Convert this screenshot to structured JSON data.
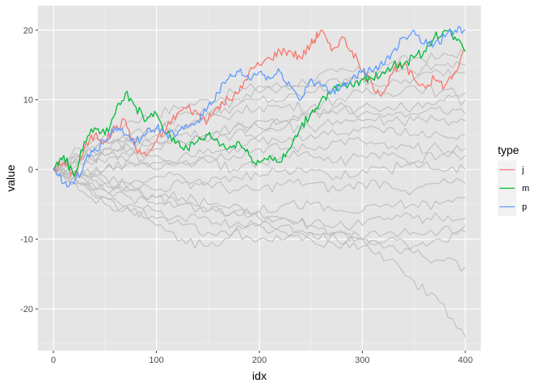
{
  "chart_data": {
    "type": "line",
    "xlabel": "idx",
    "ylabel": "value",
    "xlim": [
      -15,
      415
    ],
    "ylim": [
      -26,
      23.5
    ],
    "x_ticks": [
      0,
      100,
      200,
      300,
      400
    ],
    "x_tick_labels": [
      "0",
      "100",
      "200",
      "300",
      "400"
    ],
    "y_ticks": [
      -20,
      -10,
      0,
      10,
      20
    ],
    "y_tick_labels": [
      "-20",
      "-10",
      "0",
      "10",
      "20"
    ],
    "grid": true,
    "panel_background": "#e5e5e5",
    "background_series_color": "#bebebe",
    "background_series": [
      {
        "x": [
          0,
          25,
          50,
          75,
          100,
          125,
          150,
          175,
          200,
          225,
          250,
          275,
          300,
          325,
          350,
          375,
          400
        ],
        "values": [
          0,
          3,
          5,
          7,
          8,
          9,
          10,
          11,
          12,
          12,
          13,
          14,
          14,
          15,
          16,
          16,
          17
        ]
      },
      {
        "x": [
          0,
          25,
          50,
          75,
          100,
          125,
          150,
          175,
          200,
          225,
          250,
          275,
          300,
          325,
          350,
          375,
          400
        ],
        "values": [
          0,
          2,
          4,
          5,
          6,
          8,
          8,
          10,
          11,
          12,
          12,
          13,
          13,
          14,
          14,
          15,
          15
        ]
      },
      {
        "x": [
          0,
          25,
          50,
          75,
          100,
          125,
          150,
          175,
          200,
          225,
          250,
          275,
          300,
          325,
          350,
          375,
          400
        ],
        "values": [
          0,
          1,
          3,
          4,
          5,
          6,
          8,
          9,
          10,
          10,
          11,
          12,
          13,
          12,
          13,
          14,
          14
        ]
      },
      {
        "x": [
          0,
          25,
          50,
          75,
          100,
          125,
          150,
          175,
          200,
          225,
          250,
          275,
          300,
          325,
          350,
          375,
          400
        ],
        "values": [
          0,
          2,
          4,
          4,
          6,
          6,
          7,
          8,
          9,
          9,
          9,
          10,
          11,
          11,
          12,
          11,
          11
        ]
      },
      {
        "x": [
          0,
          25,
          50,
          75,
          100,
          125,
          150,
          175,
          200,
          225,
          250,
          275,
          300,
          325,
          350,
          375,
          400
        ],
        "values": [
          0,
          1,
          2,
          3,
          4,
          4,
          5,
          6,
          6,
          7,
          8,
          8,
          9,
          9,
          9,
          10,
          10
        ]
      },
      {
        "x": [
          0,
          25,
          50,
          75,
          100,
          125,
          150,
          175,
          200,
          225,
          250,
          275,
          300,
          325,
          350,
          375,
          400
        ],
        "values": [
          0,
          2,
          3,
          3,
          4,
          5,
          5,
          6,
          7,
          7,
          8,
          9,
          8,
          8,
          8,
          9,
          8
        ]
      },
      {
        "x": [
          0,
          25,
          50,
          75,
          100,
          125,
          150,
          175,
          200,
          225,
          250,
          275,
          300,
          325,
          350,
          375,
          400
        ],
        "values": [
          0,
          1,
          2,
          2,
          3,
          4,
          4,
          5,
          5,
          6,
          6,
          7,
          7,
          7,
          7,
          7,
          7
        ]
      },
      {
        "x": [
          0,
          25,
          50,
          75,
          100,
          125,
          150,
          175,
          200,
          225,
          250,
          275,
          300,
          325,
          350,
          375,
          400
        ],
        "values": [
          0,
          -1,
          0,
          1,
          1,
          2,
          3,
          3,
          4,
          4,
          5,
          5,
          6,
          6,
          5,
          5,
          5
        ]
      },
      {
        "x": [
          0,
          25,
          50,
          75,
          100,
          125,
          150,
          175,
          200,
          225,
          250,
          275,
          300,
          325,
          350,
          375,
          400
        ],
        "values": [
          0,
          1,
          1,
          2,
          2,
          1,
          2,
          2,
          3,
          3,
          3,
          4,
          4,
          3,
          3,
          3,
          3
        ]
      },
      {
        "x": [
          0,
          25,
          50,
          75,
          100,
          125,
          150,
          175,
          200,
          225,
          250,
          275,
          300,
          325,
          350,
          375,
          400
        ],
        "values": [
          0,
          -1,
          0,
          1,
          0,
          1,
          1,
          0,
          1,
          2,
          2,
          1,
          2,
          2,
          1,
          2,
          2
        ]
      },
      {
        "x": [
          0,
          25,
          50,
          75,
          100,
          125,
          150,
          175,
          200,
          225,
          250,
          275,
          300,
          325,
          350,
          375,
          400
        ],
        "values": [
          0,
          -1,
          -1,
          -2,
          -1,
          -1,
          -2,
          -1,
          -1,
          0,
          0,
          -1,
          0,
          0,
          1,
          0,
          0
        ]
      },
      {
        "x": [
          0,
          25,
          50,
          75,
          100,
          125,
          150,
          175,
          200,
          225,
          250,
          275,
          300,
          325,
          350,
          375,
          400
        ],
        "values": [
          0,
          -1,
          -2,
          -2,
          -3,
          -2,
          -2,
          -3,
          -3,
          -2,
          -2,
          -3,
          -2,
          -2,
          -3,
          -2,
          -2
        ]
      },
      {
        "x": [
          0,
          25,
          50,
          75,
          100,
          125,
          150,
          175,
          200,
          225,
          250,
          275,
          300,
          325,
          350,
          375,
          400
        ],
        "values": [
          0,
          -2,
          -3,
          -3,
          -4,
          -4,
          -5,
          -5,
          -6,
          -5,
          -5,
          -6,
          -6,
          -5,
          -5,
          -5,
          -4
        ]
      },
      {
        "x": [
          0,
          25,
          50,
          75,
          100,
          125,
          150,
          175,
          200,
          225,
          250,
          275,
          300,
          325,
          350,
          375,
          400
        ],
        "values": [
          0,
          -2,
          -3,
          -4,
          -5,
          -5,
          -6,
          -6,
          -7,
          -7,
          -8,
          -8,
          -8,
          -7,
          -7,
          -7,
          -7
        ]
      },
      {
        "x": [
          0,
          25,
          50,
          75,
          100,
          125,
          150,
          175,
          200,
          225,
          250,
          275,
          300,
          325,
          350,
          375,
          400
        ],
        "values": [
          0,
          -2,
          -4,
          -5,
          -6,
          -7,
          -7,
          -8,
          -8,
          -9,
          -9,
          -10,
          -10,
          -9,
          -9,
          -9,
          -8
        ]
      },
      {
        "x": [
          0,
          25,
          50,
          75,
          100,
          125,
          150,
          175,
          200,
          225,
          250,
          275,
          300,
          325,
          350,
          375,
          400
        ],
        "values": [
          0,
          -3,
          -5,
          -6,
          -7,
          -8,
          -9,
          -9,
          -10,
          -10,
          -10,
          -11,
          -11,
          -11,
          -12,
          -13,
          -14
        ]
      },
      {
        "x": [
          0,
          25,
          50,
          75,
          100,
          125,
          150,
          175,
          200,
          225,
          250,
          275,
          300,
          325,
          350,
          375,
          400
        ],
        "values": [
          0,
          -2,
          -4,
          -6,
          -8,
          -10,
          -11,
          -9,
          -8,
          -8,
          -9,
          -9,
          -10,
          -10,
          -11,
          -10,
          -9
        ]
      },
      {
        "x": [
          0,
          25,
          50,
          75,
          100,
          125,
          150,
          175,
          200,
          225,
          250,
          275,
          300,
          325,
          350,
          375,
          400
        ],
        "values": [
          0,
          -1,
          -2,
          -3,
          -4,
          -5,
          -6,
          -6,
          -6,
          -7,
          -8,
          -9,
          -10,
          -13,
          -16,
          -19,
          -24
        ]
      }
    ],
    "series": [
      {
        "name": "j",
        "color": "#F8766D",
        "x": [
          0,
          10,
          20,
          30,
          40,
          50,
          60,
          70,
          80,
          90,
          100,
          110,
          120,
          130,
          140,
          150,
          160,
          170,
          180,
          190,
          200,
          210,
          220,
          230,
          240,
          250,
          255,
          260,
          270,
          280,
          290,
          300,
          310,
          320,
          330,
          340,
          350,
          360,
          370,
          380,
          390,
          400
        ],
        "values": [
          0,
          1,
          -1,
          3,
          5,
          4,
          6,
          7,
          3,
          2,
          4,
          6,
          8,
          9,
          8,
          7,
          9,
          10,
          11,
          14,
          15,
          16,
          17,
          17,
          16,
          18,
          19,
          20,
          17,
          19,
          17,
          14,
          12,
          11,
          14,
          15,
          13,
          12,
          13,
          12,
          14,
          17
        ]
      },
      {
        "name": "m",
        "color": "#00BA38",
        "x": [
          0,
          10,
          20,
          30,
          40,
          50,
          60,
          70,
          80,
          90,
          100,
          110,
          120,
          130,
          140,
          150,
          160,
          170,
          180,
          190,
          200,
          210,
          220,
          230,
          240,
          250,
          260,
          270,
          280,
          290,
          300,
          310,
          320,
          330,
          340,
          350,
          360,
          370,
          380,
          390,
          400
        ],
        "values": [
          0,
          2,
          -1,
          4,
          6,
          5,
          8,
          11,
          9,
          7,
          8,
          5,
          4,
          3,
          4,
          5,
          4,
          3,
          4,
          2,
          1,
          2,
          1,
          3,
          6,
          8,
          10,
          11,
          12,
          12,
          13,
          13,
          14,
          15,
          15,
          16,
          17,
          19,
          20,
          19,
          17
        ]
      },
      {
        "name": "p",
        "color": "#619CFF",
        "x": [
          0,
          10,
          20,
          30,
          40,
          50,
          60,
          70,
          80,
          90,
          100,
          110,
          120,
          130,
          140,
          150,
          160,
          170,
          180,
          190,
          200,
          210,
          220,
          230,
          240,
          250,
          260,
          270,
          280,
          290,
          300,
          310,
          320,
          330,
          340,
          350,
          360,
          370,
          380,
          390,
          400
        ],
        "values": [
          0,
          -2,
          -2,
          1,
          3,
          4,
          6,
          5,
          4,
          5,
          6,
          5,
          5,
          6,
          7,
          9,
          11,
          13,
          14,
          13,
          14,
          13,
          14,
          12,
          10,
          13,
          12,
          11,
          12,
          13,
          14,
          14,
          15,
          17,
          19,
          20,
          18,
          18,
          19,
          20,
          20
        ]
      }
    ],
    "legend": {
      "title": "type",
      "position": "right",
      "entries": [
        "j",
        "m",
        "p"
      ]
    }
  }
}
